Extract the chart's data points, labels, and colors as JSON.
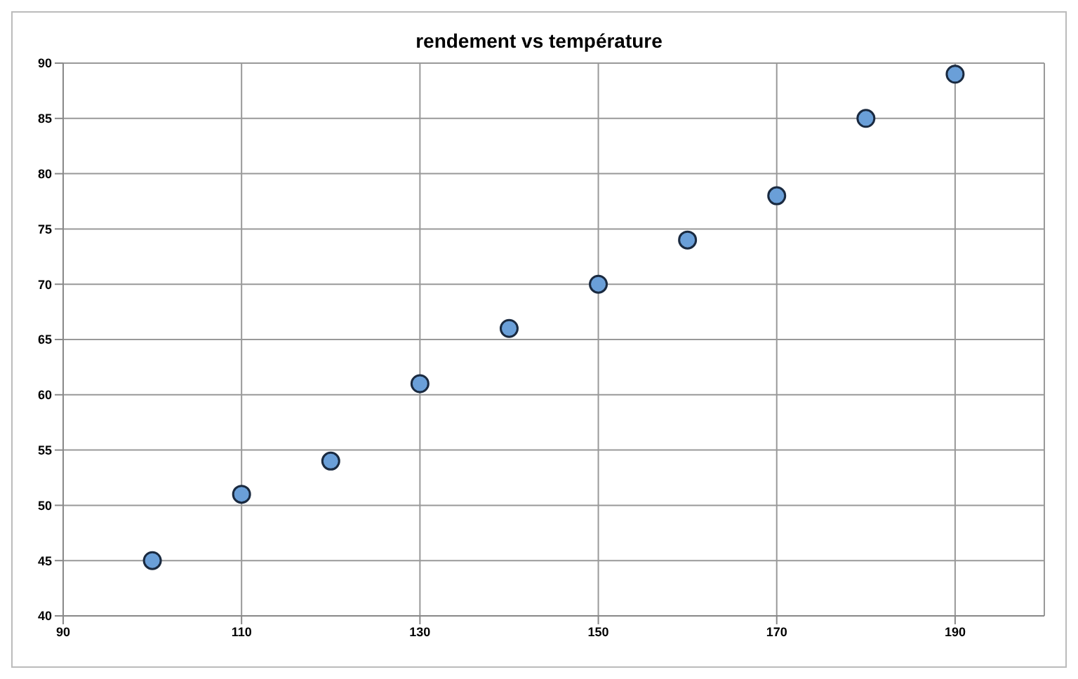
{
  "chart_data": {
    "type": "scatter",
    "title": "rendement vs température",
    "x": [
      100,
      110,
      120,
      130,
      140,
      150,
      160,
      170,
      180,
      190
    ],
    "series": [
      {
        "color": "#6a9fd8",
        "values": [
          45,
          51,
          54,
          61,
          66,
          70,
          74,
          78,
          85,
          89
        ]
      }
    ],
    "xlim": [
      90,
      200
    ],
    "xticks": [
      90,
      110,
      130,
      150,
      170,
      190
    ],
    "ylim": [
      40,
      90
    ],
    "yticks": [
      40,
      45,
      50,
      55,
      60,
      65,
      70,
      75,
      80,
      85,
      90
    ],
    "grid": true,
    "marker": "circle"
  }
}
